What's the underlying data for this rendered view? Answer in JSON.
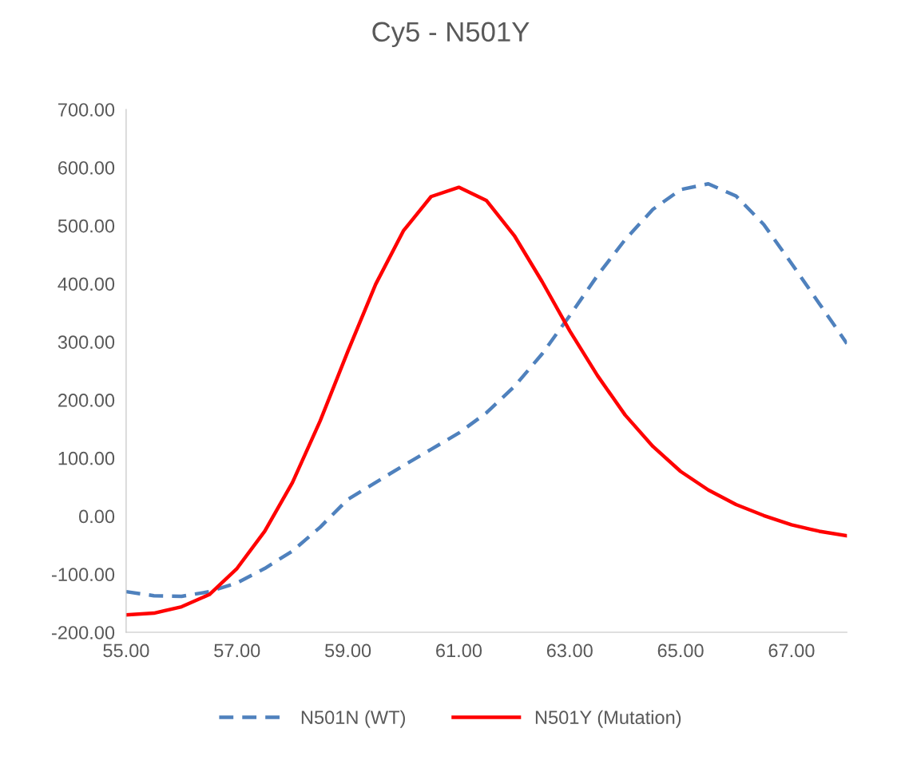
{
  "chart_data": {
    "type": "line",
    "title": "Cy5 - N501Y",
    "x": [
      55,
      55.5,
      56,
      56.5,
      57,
      57.5,
      58,
      58.5,
      59,
      59.5,
      60,
      60.5,
      61,
      61.5,
      62,
      62.5,
      63,
      63.5,
      64,
      64.5,
      65,
      65.5,
      66,
      66.5,
      67,
      67.5,
      68
    ],
    "series": [
      {
        "name": "N501N (WT)",
        "color": "#4f81bd",
        "line_style": "dashed",
        "values": [
          -130,
          -137,
          -138,
          -130,
          -115,
          -90,
          -60,
          -19,
          29,
          58,
          87,
          115,
          143,
          178,
          223,
          279,
          345,
          414,
          476,
          528,
          562,
          572,
          551,
          502,
          435,
          366,
          297
        ]
      },
      {
        "name": "N501Y (Mutation)",
        "color": "#ff0000",
        "line_style": "solid",
        "values": [
          -170,
          -167,
          -156,
          -135,
          -90,
          -26,
          58,
          164,
          284,
          399,
          491,
          550,
          566,
          543,
          483,
          404,
          319,
          242,
          174,
          120,
          77,
          45,
          20,
          1,
          -15,
          -26,
          -34
        ]
      }
    ],
    "xlim": [
      55,
      68
    ],
    "xticks": [
      {
        "value": 55,
        "label": "55.00"
      },
      {
        "value": 57,
        "label": "57.00"
      },
      {
        "value": 59,
        "label": "59.00"
      },
      {
        "value": 61,
        "label": "61.00"
      },
      {
        "value": 63,
        "label": "63.00"
      },
      {
        "value": 65,
        "label": "65.00"
      },
      {
        "value": 67,
        "label": "67.00"
      }
    ],
    "ylim": [
      -200,
      700
    ],
    "yticks": [
      {
        "value": -200,
        "label": "-200.00"
      },
      {
        "value": -100,
        "label": "-100.00"
      },
      {
        "value": 0,
        "label": "0.00"
      },
      {
        "value": 100,
        "label": "100.00"
      },
      {
        "value": 200,
        "label": "200.00"
      },
      {
        "value": 300,
        "label": "300.00"
      },
      {
        "value": 400,
        "label": "400.00"
      },
      {
        "value": 500,
        "label": "500.00"
      },
      {
        "value": 600,
        "label": "600.00"
      },
      {
        "value": 700,
        "label": "700.00"
      }
    ],
    "grid": false,
    "legend": "bottom",
    "marker": "none"
  }
}
